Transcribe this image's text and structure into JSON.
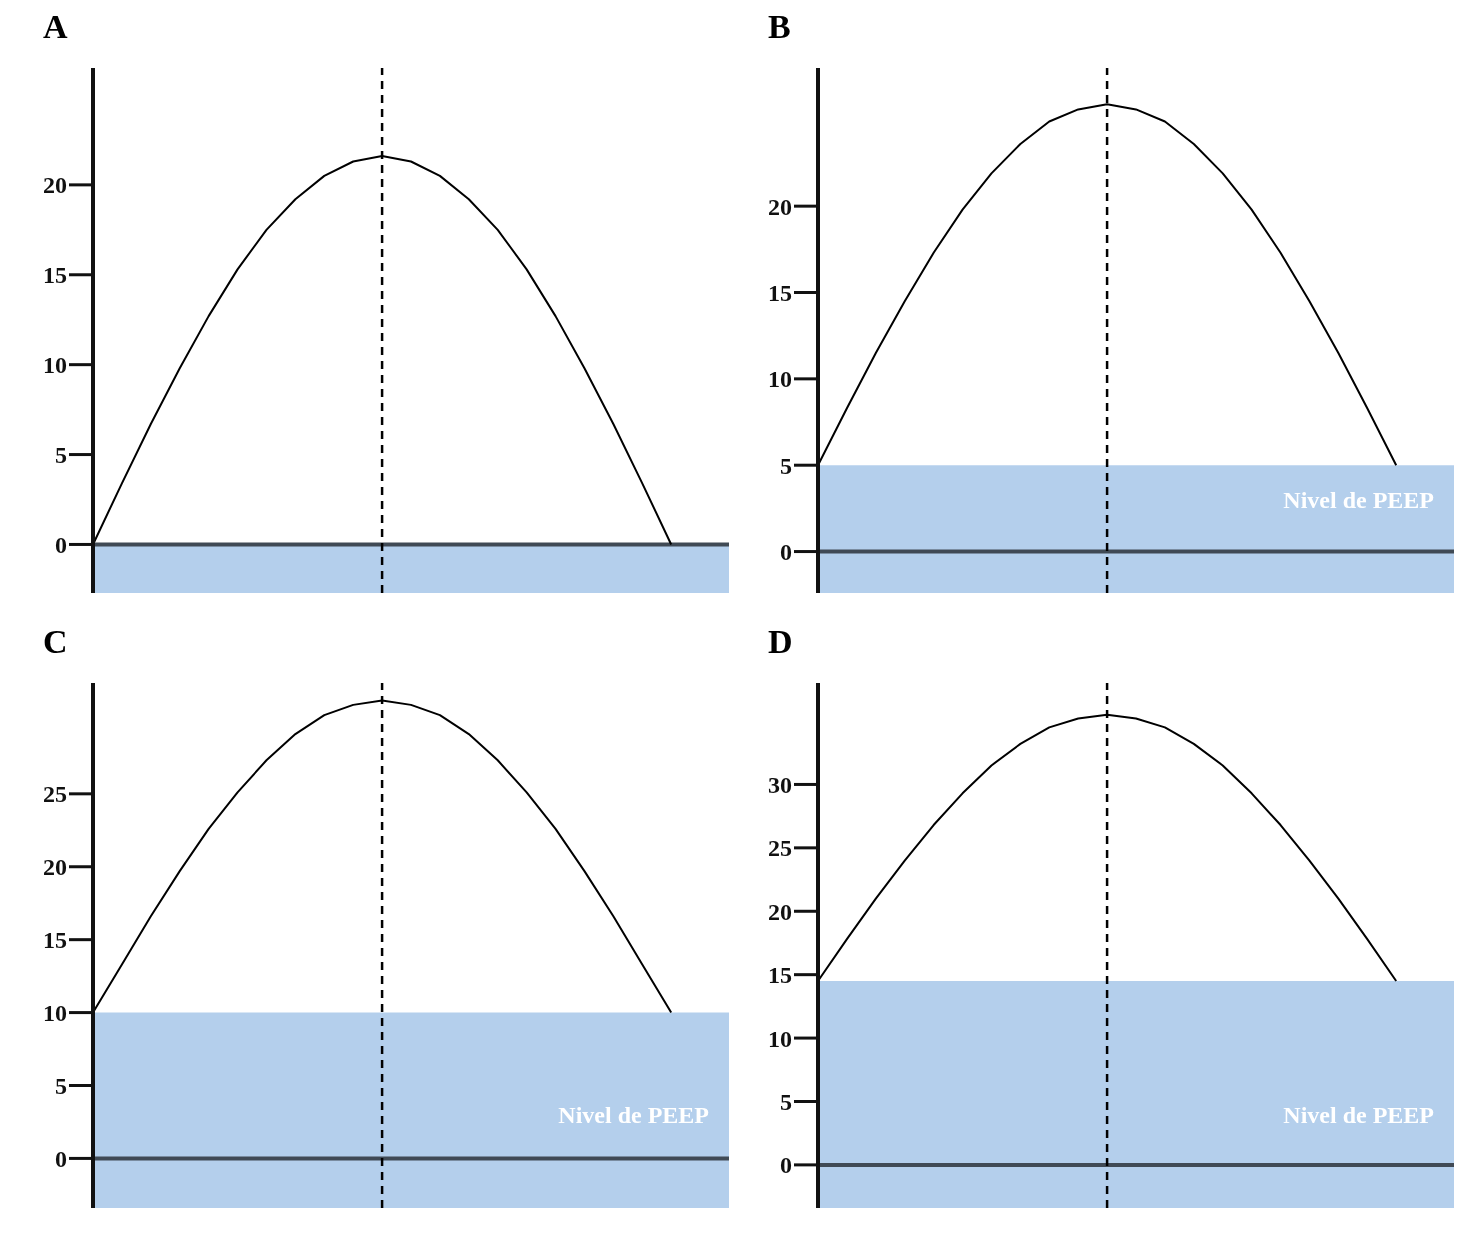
{
  "chart_data": [
    {
      "type": "line",
      "title": "A",
      "categories": [
        null,
        null,
        null,
        null,
        null,
        null,
        null,
        null,
        null,
        null,
        null,
        null,
        null,
        null,
        null,
        null,
        null,
        null,
        null,
        null,
        null,
        null,
        null
      ],
      "values": [
        0,
        3.4,
        6.7,
        9.8,
        12.7,
        15.3,
        17.5,
        19.2,
        20.5,
        21.3,
        21.6,
        21.3,
        20.5,
        19.2,
        17.5,
        15.3,
        12.7,
        9.8,
        6.7,
        3.4,
        0,
        null,
        null
      ],
      "color": "#000000",
      "ylim": [
        -2.7,
        26.5
      ],
      "yticks": [
        0,
        5,
        10,
        15,
        20
      ],
      "ref_lines": [
        {
          "axis": "y",
          "value": 0,
          "color": "#404a55",
          "line_style": "solid"
        },
        {
          "axis": "x",
          "color": "#000000",
          "line_style": "dashed"
        }
      ],
      "bands": [
        {
          "axis": "y",
          "from": -2.7,
          "to": 0,
          "color": "#b4cfec"
        }
      ]
    },
    {
      "type": "line",
      "title": "B",
      "categories": [
        null,
        null,
        null,
        null,
        null,
        null,
        null,
        null,
        null,
        null,
        null,
        null,
        null,
        null,
        null,
        null,
        null,
        null,
        null,
        null,
        null,
        null,
        null
      ],
      "values": [
        5,
        8.3,
        11.5,
        14.5,
        17.3,
        19.8,
        21.9,
        23.6,
        24.9,
        25.6,
        25.9,
        25.6,
        24.9,
        23.6,
        21.9,
        19.8,
        17.3,
        14.5,
        11.5,
        8.3,
        5,
        null,
        null
      ],
      "color": "#000000",
      "ylim": [
        -2.4,
        28
      ],
      "yticks": [
        0,
        5,
        10,
        15,
        20
      ],
      "ref_lines": [
        {
          "axis": "y",
          "value": 0,
          "color": "#404a55",
          "line_style": "solid"
        },
        {
          "axis": "x",
          "color": "#000000",
          "line_style": "dashed"
        }
      ],
      "bands": [
        {
          "axis": "y",
          "from": -2.4,
          "to": 5,
          "color": "#b4cfec",
          "label": "Nivel de PEEP"
        }
      ]
    },
    {
      "type": "line",
      "title": "C",
      "categories": [
        null,
        null,
        null,
        null,
        null,
        null,
        null,
        null,
        null,
        null,
        null,
        null,
        null,
        null,
        null,
        null,
        null,
        null,
        null,
        null,
        null,
        null,
        null
      ],
      "values": [
        10,
        13.3,
        16.6,
        19.7,
        22.6,
        25.1,
        27.3,
        29.1,
        30.4,
        31.1,
        31.4,
        31.1,
        30.4,
        29.1,
        27.3,
        25.1,
        22.6,
        19.7,
        16.6,
        13.3,
        10,
        null,
        null
      ],
      "color": "#000000",
      "ylim": [
        -3.4,
        32.6
      ],
      "yticks": [
        0,
        5,
        10,
        15,
        20,
        25
      ],
      "ref_lines": [
        {
          "axis": "y",
          "value": 0,
          "color": "#404a55",
          "line_style": "solid"
        },
        {
          "axis": "x",
          "color": "#000000",
          "line_style": "dashed"
        }
      ],
      "bands": [
        {
          "axis": "y",
          "from": -3.4,
          "to": 10,
          "color": "#b4cfec",
          "label": "Nivel de PEEP"
        }
      ]
    },
    {
      "type": "line",
      "title": "D",
      "categories": [
        null,
        null,
        null,
        null,
        null,
        null,
        null,
        null,
        null,
        null,
        null,
        null,
        null,
        null,
        null,
        null,
        null,
        null,
        null,
        null,
        null,
        null,
        null
      ],
      "values": [
        14.5,
        17.8,
        21.0,
        24.0,
        26.8,
        29.3,
        31.5,
        33.2,
        34.5,
        35.2,
        35.5,
        35.2,
        34.5,
        33.2,
        31.5,
        29.3,
        26.8,
        24.0,
        21.0,
        17.8,
        14.5,
        null,
        null
      ],
      "color": "#000000",
      "ylim": [
        -3.4,
        38
      ],
      "yticks": [
        0,
        5,
        10,
        15,
        20,
        25,
        30
      ],
      "ref_lines": [
        {
          "axis": "y",
          "value": 0,
          "color": "#404a55",
          "line_style": "solid"
        },
        {
          "axis": "x",
          "color": "#000000",
          "line_style": "dashed"
        }
      ],
      "bands": [
        {
          "axis": "y",
          "from": -3.4,
          "to": 14.5,
          "color": "#b4cfec",
          "label": "Nivel de PEEP"
        }
      ]
    }
  ]
}
